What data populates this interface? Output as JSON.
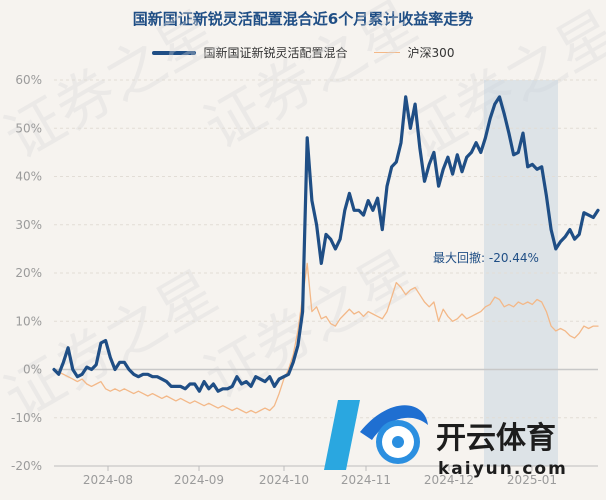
{
  "chart_data": {
    "type": "line",
    "title": "国新国证新锐灵活配置混合近6个月累计收益率走势",
    "xlabel": "",
    "ylabel": "",
    "y_ticks": [
      "60%",
      "50%",
      "40%",
      "30%",
      "20%",
      "10%",
      "0%",
      "-10%",
      "-20%"
    ],
    "ylim": [
      -20,
      60
    ],
    "x_ticks": [
      "2024-08",
      "2024-09",
      "2024-10",
      "2024-11",
      "2024-12",
      "2025-01"
    ],
    "grid": true,
    "legend_position": "top-center",
    "annotation": "最大回撤: -20.44%",
    "drawdown_shading": true,
    "series": [
      {
        "name": "国新国证新锐灵活配置混合",
        "color": "#1f4e85",
        "values": [
          0.0,
          -1.0,
          1.5,
          4.5,
          0.0,
          -1.5,
          -1.0,
          0.5,
          0.0,
          1.0,
          5.5,
          6.0,
          2.5,
          0.0,
          1.5,
          1.5,
          0.0,
          -1.0,
          -1.5,
          -1.0,
          -1.0,
          -1.5,
          -1.5,
          -2.0,
          -2.5,
          -3.5,
          -3.5,
          -3.5,
          -4.0,
          -3.0,
          -3.0,
          -4.5,
          -2.5,
          -4.0,
          -3.0,
          -4.5,
          -4.0,
          -4.0,
          -3.5,
          -1.5,
          -3.0,
          -2.5,
          -3.5,
          -1.5,
          -2.0,
          -2.5,
          -1.5,
          -3.5,
          -2.0,
          -1.5,
          -1.0,
          1.5,
          5.0,
          12.0,
          48.0,
          35.0,
          30.0,
          22.0,
          28.0,
          27.0,
          25.0,
          27.0,
          33.0,
          36.5,
          33.0,
          33.0,
          32.0,
          35.0,
          33.0,
          35.5,
          29.0,
          38.0,
          42.0,
          43.0,
          47.0,
          56.5,
          50.0,
          55.0,
          46.0,
          39.0,
          42.5,
          45.0,
          38.0,
          41.5,
          44.0,
          40.5,
          44.5,
          41.0,
          44.0,
          45.0,
          47.0,
          45.0,
          48.0,
          52.0,
          55.0,
          56.5,
          53.0,
          49.0,
          44.5,
          45.0,
          49.0,
          42.0,
          42.5,
          41.5,
          42.0,
          36.0,
          29.0,
          25.0,
          26.5,
          27.5,
          29.0,
          27.0,
          28.0,
          32.5,
          32.0,
          31.5,
          33.0
        ]
      },
      {
        "name": "沪深300",
        "color": "#f3b888",
        "values": [
          0.0,
          -0.5,
          -1.0,
          -1.5,
          -2.0,
          -2.5,
          -2.0,
          -3.0,
          -3.5,
          -3.0,
          -2.5,
          -4.0,
          -4.5,
          -4.0,
          -4.5,
          -4.0,
          -4.5,
          -5.0,
          -4.5,
          -5.0,
          -5.5,
          -5.0,
          -5.5,
          -6.0,
          -5.5,
          -6.0,
          -6.5,
          -6.0,
          -6.5,
          -7.0,
          -6.5,
          -7.0,
          -7.5,
          -7.0,
          -7.5,
          -8.0,
          -7.5,
          -8.0,
          -8.5,
          -8.0,
          -8.5,
          -9.0,
          -8.5,
          -9.0,
          -8.5,
          -8.0,
          -8.5,
          -7.5,
          -5.0,
          -2.0,
          0.0,
          3.0,
          8.0,
          15.0,
          22.0,
          12.0,
          13.0,
          10.5,
          11.0,
          9.5,
          9.0,
          10.5,
          11.5,
          12.5,
          11.5,
          12.0,
          11.0,
          12.0,
          11.5,
          11.0,
          10.5,
          12.0,
          15.0,
          18.0,
          17.0,
          15.5,
          16.5,
          17.0,
          15.5,
          14.0,
          13.0,
          14.0,
          10.0,
          12.5,
          11.0,
          10.0,
          10.5,
          11.5,
          10.5,
          11.0,
          11.5,
          12.0,
          13.0,
          13.5,
          15.0,
          14.5,
          13.0,
          13.5,
          13.0,
          14.0,
          13.5,
          14.0,
          13.5,
          14.5,
          14.0,
          12.0,
          9.0,
          8.0,
          8.5,
          8.0,
          7.0,
          6.5,
          7.5,
          9.0,
          8.5,
          9.0,
          9.0
        ]
      }
    ]
  },
  "watermark": {
    "text": "证券之星",
    "logo_text": "开云体育",
    "logo_url_text": "kaiyun.com"
  }
}
